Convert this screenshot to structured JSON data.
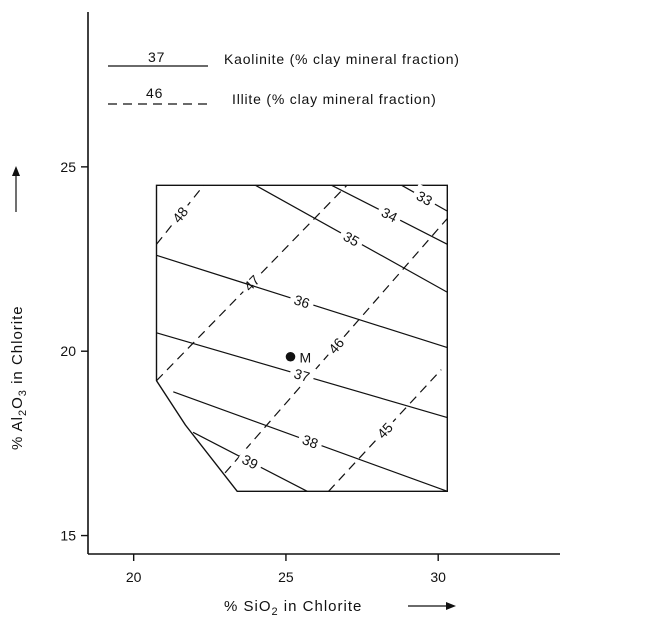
{
  "chart_data": {
    "type": "contour",
    "xlabel": "% SiO₂ in Chlorite",
    "ylabel": "% Al₂O₃ in Chlorite",
    "xlim": [
      18.5,
      34
    ],
    "ylim": [
      14.5,
      29.2
    ],
    "x_ticks": [
      20,
      25,
      30
    ],
    "y_ticks": [
      15,
      20,
      25
    ],
    "x_ticks_labels": [
      "20",
      "25",
      "30"
    ],
    "y_tick_labels": [
      "15",
      "20",
      "25"
    ],
    "arrows_on_axis_labels": true,
    "grid": false,
    "legend_position": "top-left",
    "legend": [
      {
        "style": "solid",
        "sample_value": "37",
        "label": "Kaolinite (% clay mineral fraction)"
      },
      {
        "style": "dashed",
        "sample_value": "46",
        "label": "Illite (% clay mineral fraction)"
      }
    ],
    "domain_boundary": [
      [
        20.75,
        24.5
      ],
      [
        30.3,
        24.5
      ],
      [
        30.3,
        16.2
      ],
      [
        23.4,
        16.2
      ],
      [
        21.7,
        18.0
      ],
      [
        20.75,
        19.2
      ]
    ],
    "kaolinite_contours": [
      {
        "label": "33",
        "line": [
          [
            28.8,
            24.5
          ],
          [
            30.3,
            23.8
          ]
        ]
      },
      {
        "label": "34",
        "line": [
          [
            26.5,
            24.5
          ],
          [
            30.3,
            22.9
          ]
        ]
      },
      {
        "label": "35",
        "line": [
          [
            24.0,
            24.5
          ],
          [
            30.3,
            21.6
          ]
        ]
      },
      {
        "label": "36",
        "line": [
          [
            20.75,
            22.6
          ],
          [
            30.3,
            20.1
          ]
        ]
      },
      {
        "label": "37",
        "line": [
          [
            20.75,
            20.5
          ],
          [
            30.3,
            18.2
          ]
        ]
      },
      {
        "label": "38",
        "line": [
          [
            21.3,
            18.9
          ],
          [
            30.3,
            16.2
          ]
        ]
      },
      {
        "label": "39",
        "line": [
          [
            21.95,
            17.8
          ],
          [
            25.7,
            16.2
          ]
        ]
      }
    ],
    "illite_contours": [
      {
        "label": "48",
        "line": [
          [
            20.75,
            22.9
          ],
          [
            22.3,
            24.5
          ]
        ]
      },
      {
        "label": "47",
        "line": [
          [
            20.75,
            19.2
          ],
          [
            27.0,
            24.5
          ]
        ]
      },
      {
        "label": "46",
        "line": [
          [
            23.0,
            16.7
          ],
          [
            30.3,
            23.6
          ]
        ]
      },
      {
        "label": "45",
        "line": [
          [
            26.4,
            16.2
          ],
          [
            30.1,
            19.5
          ]
        ]
      }
    ],
    "points": [
      {
        "label": "M",
        "x": 25.15,
        "y": 19.85
      }
    ]
  }
}
